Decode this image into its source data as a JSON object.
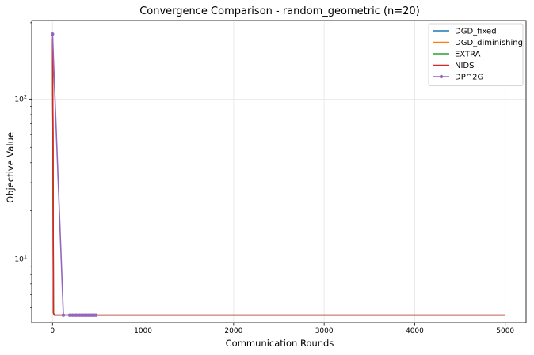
{
  "chart_data": {
    "type": "line",
    "title": "Convergence Comparison - random_geometric (n=20)",
    "xlabel": "Communication Rounds",
    "ylabel": "Objective Value",
    "xlim": [
      -230,
      5230
    ],
    "ylim": [
      4.0,
      310
    ],
    "yscale": "log",
    "grid": true,
    "legend_position": "top-right",
    "x_ticks": [
      0,
      1000,
      2000,
      3000,
      4000,
      5000
    ],
    "x_tick_labels": [
      "0",
      "1000",
      "2000",
      "3000",
      "4000",
      "5000"
    ],
    "y_ticks": [
      10,
      100
    ],
    "y_tick_labels": [
      "10^1",
      "10^2"
    ],
    "y_tick_sup_base": "10",
    "y_tick_sup_exp": [
      "1",
      "2"
    ],
    "series": [
      {
        "name": "DGD_fixed",
        "color": "#1f77b4",
        "marker": false,
        "x": [
          0,
          5,
          10,
          20,
          5000
        ],
        "y": [
          240,
          60,
          4.6,
          4.45,
          4.45
        ]
      },
      {
        "name": "DGD_diminishing",
        "color": "#ff7f0e",
        "marker": false,
        "x": [
          0,
          5,
          10,
          20,
          5000
        ],
        "y": [
          240,
          60,
          4.6,
          4.45,
          4.45
        ]
      },
      {
        "name": "EXTRA",
        "color": "#2ca02c",
        "marker": false,
        "x": [
          0,
          5,
          10,
          20,
          5000
        ],
        "y": [
          240,
          60,
          4.6,
          4.45,
          4.45
        ]
      },
      {
        "name": "NIDS",
        "color": "#d62728",
        "marker": false,
        "x": [
          0,
          5,
          10,
          20,
          5000
        ],
        "y": [
          240,
          60,
          4.6,
          4.45,
          4.45
        ]
      },
      {
        "name": "DP^2G",
        "color": "#9467bd",
        "marker": true,
        "x": [
          0,
          120,
          190,
          220,
          240,
          260,
          280,
          300,
          320,
          340,
          360,
          380,
          400,
          420,
          440,
          460,
          480
        ],
        "y": [
          255,
          4.45,
          4.45,
          4.45,
          4.45,
          4.45,
          4.45,
          4.45,
          4.45,
          4.45,
          4.45,
          4.45,
          4.45,
          4.45,
          4.45,
          4.45,
          4.45
        ]
      }
    ]
  }
}
